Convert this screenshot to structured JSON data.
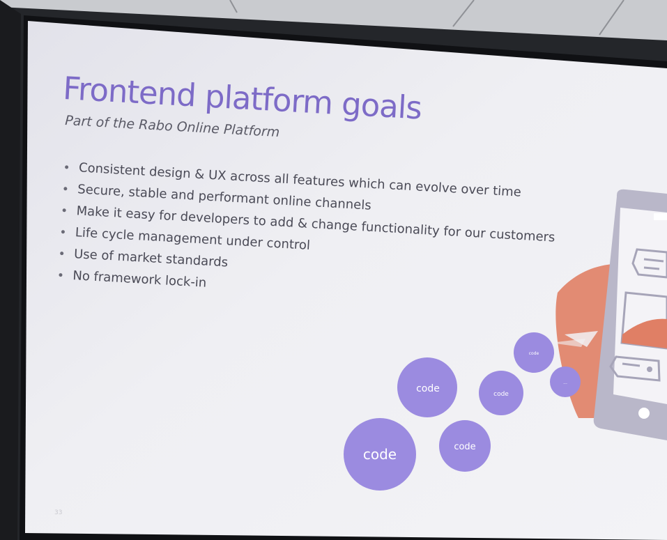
{
  "slide": {
    "title": "Frontend platform goals",
    "subtitle": "Part of the Rabo Online Platform",
    "bullets": [
      "Consistent design & UX across all features which can evolve over time",
      "Secure, stable and performant online channels",
      "Make it easy for developers to add & change functionality for our customers",
      "Life cycle management under control",
      "Use of market standards",
      "No framework lock-in"
    ],
    "slide_number": "33"
  },
  "illustration": {
    "bubbles": [
      {
        "label": "code"
      },
      {
        "label": "code"
      },
      {
        "label": "code"
      },
      {
        "label": "code"
      },
      {
        "label": "code"
      },
      {
        "label": "..."
      }
    ]
  },
  "colors": {
    "title": "#7d6bc7",
    "bubble": "#9b8be0",
    "accent": "#e07f65",
    "device": "#b9b7c9",
    "slide_background": "#eeeef2"
  },
  "icons": [
    "phone-device-icon",
    "speech-bubble-icon",
    "arrow-icon"
  ]
}
